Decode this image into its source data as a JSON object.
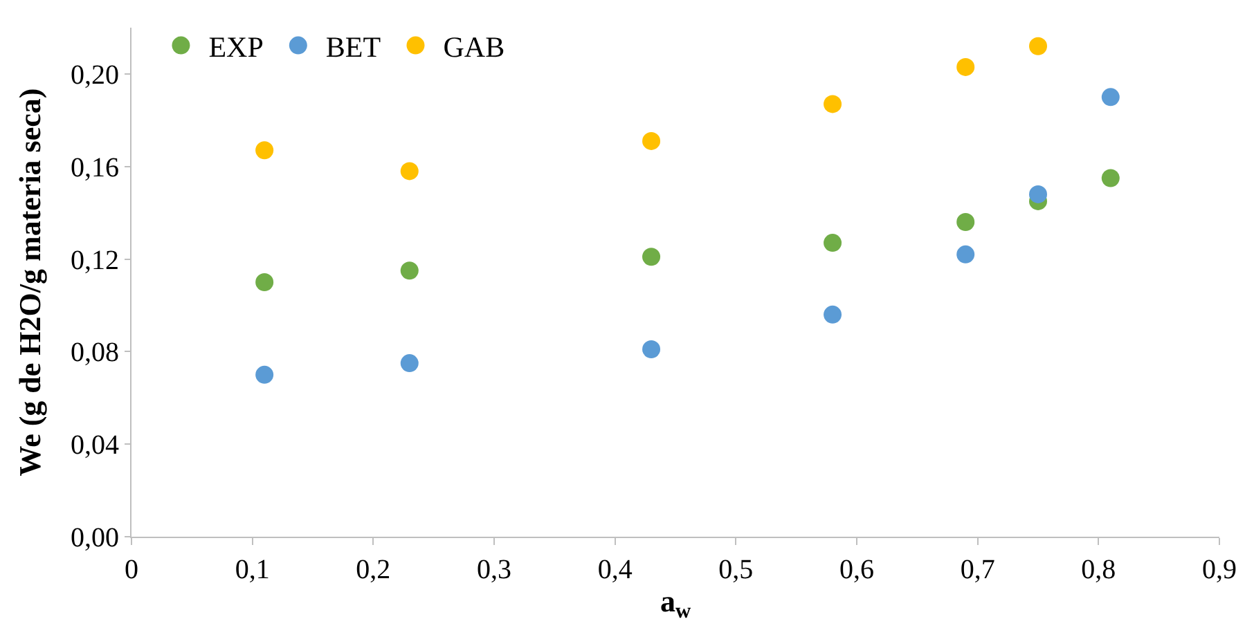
{
  "chart_data": {
    "type": "scatter",
    "xlabel": "a$_{w}$",
    "ylabel": "We (g de H2O/g materia seca)",
    "x": [
      0.11,
      0.23,
      0.43,
      0.58,
      0.69,
      0.75,
      0.81
    ],
    "series": [
      {
        "name": "EXP",
        "color": "#70ad47",
        "values": [
          0.11,
          0.115,
          0.121,
          0.127,
          0.136,
          0.145,
          0.155
        ]
      },
      {
        "name": "BET",
        "color": "#5b9bd5",
        "values": [
          0.07,
          0.075,
          0.081,
          0.096,
          0.122,
          0.148,
          0.19
        ]
      },
      {
        "name": "GAB",
        "color": "#ffc000",
        "values": [
          0.167,
          0.158,
          0.171,
          0.187,
          0.203,
          0.212,
          null
        ]
      }
    ],
    "xlim": [
      0,
      0.9
    ],
    "xticks": [
      {
        "value": 0,
        "label": "0"
      },
      {
        "value": 0.1,
        "label": "0,1"
      },
      {
        "value": 0.2,
        "label": "0,2"
      },
      {
        "value": 0.3,
        "label": "0,3"
      },
      {
        "value": 0.4,
        "label": "0,4"
      },
      {
        "value": 0.5,
        "label": "0,5"
      },
      {
        "value": 0.6,
        "label": "0,6"
      },
      {
        "value": 0.7,
        "label": "0,7"
      },
      {
        "value": 0.8,
        "label": "0,8"
      },
      {
        "value": 0.9,
        "label": "0,9"
      }
    ],
    "ylim": [
      0,
      0.22
    ],
    "yticks": [
      {
        "value": 0,
        "label": "0,00"
      },
      {
        "value": 0.04,
        "label": "0,04"
      },
      {
        "value": 0.08,
        "label": "0,08"
      },
      {
        "value": 0.12,
        "label": "0,12"
      },
      {
        "value": 0.16,
        "label": "0,16"
      },
      {
        "value": 0.2,
        "label": "0,20"
      }
    ],
    "legend": "top left"
  }
}
